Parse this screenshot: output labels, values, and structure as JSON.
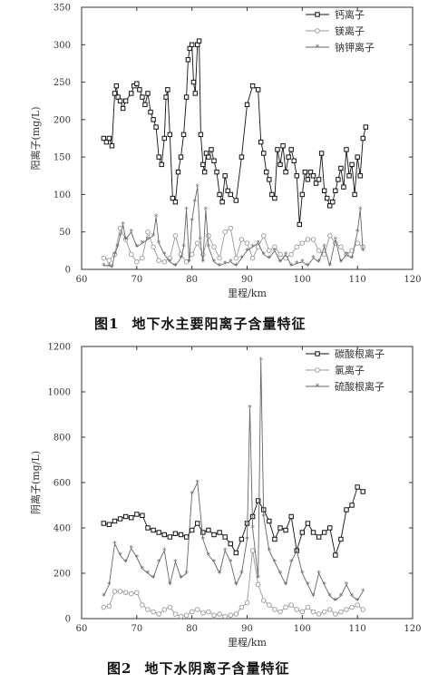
{
  "figures": [
    {
      "number": "图1",
      "caption": "地下水主要阳离子含量特征"
    },
    {
      "number": "图2",
      "caption": "地下水阴离子含量特征"
    }
  ],
  "chart_data": [
    {
      "type": "line",
      "xlabel": "里程/km",
      "ylabel": "阳离子(mg/L)",
      "xlim": [
        60,
        120
      ],
      "ylim": [
        0,
        350
      ],
      "xticks": [
        60,
        70,
        80,
        90,
        100,
        110,
        120
      ],
      "yticks": [
        0,
        50,
        100,
        150,
        200,
        250,
        300,
        350
      ],
      "legend_position": "top-right",
      "series": [
        {
          "name": "钙离子",
          "color": "#111111",
          "marker": "square",
          "x": [
            64,
            64.5,
            65,
            65.5,
            66,
            66.3,
            66.6,
            67,
            67.5,
            68,
            69,
            69.5,
            70,
            70.5,
            71,
            71.5,
            72,
            72.5,
            73,
            73.5,
            74,
            74.5,
            75,
            75.3,
            75.6,
            76,
            76.5,
            77,
            77.5,
            78,
            78.5,
            79,
            79.3,
            79.6,
            80,
            80.3,
            80.6,
            81,
            81.3,
            81.6,
            82,
            82.3,
            82.6,
            83,
            83.5,
            84,
            84.5,
            85,
            85.5,
            86,
            86.5,
            87,
            88,
            89,
            90,
            91,
            92,
            92.5,
            93,
            93.5,
            94,
            94.5,
            95,
            95.5,
            96,
            96.5,
            97,
            97.5,
            98,
            98.5,
            99,
            99.5,
            100,
            100.5,
            101,
            101.5,
            102,
            102.5,
            103,
            103.5,
            104,
            104.5,
            105,
            105.5,
            106,
            106.5,
            107,
            107.5,
            108,
            108.5,
            109,
            109.5,
            110,
            110.5,
            111,
            111.5
          ],
          "y": [
            175,
            170,
            175,
            165,
            235,
            245,
            230,
            225,
            215,
            225,
            235,
            245,
            248,
            240,
            230,
            220,
            235,
            210,
            200,
            190,
            150,
            140,
            175,
            230,
            240,
            180,
            95,
            90,
            130,
            150,
            180,
            230,
            280,
            295,
            300,
            250,
            235,
            300,
            305,
            180,
            140,
            130,
            155,
            150,
            160,
            145,
            130,
            100,
            90,
            125,
            105,
            100,
            92,
            150,
            220,
            245,
            240,
            170,
            155,
            130,
            120,
            100,
            95,
            160,
            140,
            165,
            130,
            150,
            160,
            145,
            125,
            60,
            100,
            130,
            120,
            130,
            125,
            115,
            120,
            155,
            105,
            95,
            85,
            90,
            105,
            120,
            135,
            110,
            160,
            125,
            140,
            100,
            150,
            125,
            175,
            190
          ]
        },
        {
          "name": "镁离子",
          "color": "#999999",
          "marker": "circle",
          "x": [
            64,
            65,
            66,
            67,
            68,
            69,
            70,
            71,
            72,
            73,
            74,
            75,
            76,
            77,
            78,
            79,
            80,
            81,
            82,
            83,
            84,
            85,
            86,
            87,
            88,
            89,
            90,
            91,
            92,
            93,
            94,
            95,
            96,
            97,
            98,
            99,
            100,
            101,
            102,
            103,
            104,
            105,
            106,
            107,
            108,
            109,
            110,
            111
          ],
          "y": [
            15,
            12,
            20,
            55,
            40,
            20,
            10,
            15,
            50,
            30,
            12,
            10,
            15,
            45,
            20,
            10,
            20,
            35,
            20,
            45,
            30,
            15,
            50,
            55,
            15,
            40,
            35,
            15,
            30,
            45,
            25,
            30,
            20,
            15,
            20,
            30,
            35,
            40,
            40,
            25,
            20,
            45,
            35,
            30,
            20,
            25,
            35,
            30
          ]
        },
        {
          "name": "钠钾离子",
          "color": "#666666",
          "marker": "star",
          "x": [
            64,
            65,
            65.5,
            66,
            66.5,
            67,
            67.5,
            68,
            69,
            70,
            71,
            72,
            73,
            73.5,
            74,
            75,
            76,
            77,
            78,
            78.5,
            79,
            79.5,
            80,
            80.5,
            81,
            81.5,
            82,
            82.5,
            83,
            84,
            85,
            86,
            87,
            88,
            89,
            90,
            91,
            92,
            93,
            94,
            95,
            96,
            97,
            98,
            99,
            100,
            101,
            102,
            103,
            104,
            105,
            106,
            107,
            108,
            109,
            110,
            110.5,
            111
          ],
          "y": [
            5,
            5,
            3,
            20,
            30,
            45,
            60,
            40,
            50,
            30,
            35,
            40,
            45,
            70,
            35,
            20,
            10,
            5,
            15,
            30,
            80,
            10,
            65,
            90,
            110,
            40,
            10,
            80,
            30,
            10,
            5,
            8,
            10,
            5,
            15,
            25,
            30,
            35,
            20,
            15,
            25,
            10,
            20,
            5,
            8,
            10,
            5,
            15,
            10,
            30,
            5,
            40,
            10,
            20,
            15,
            50,
            80,
            25
          ]
        }
      ]
    },
    {
      "type": "line",
      "xlabel": "里程/km",
      "ylabel": "阴离子(mg/L)",
      "xlim": [
        60,
        120
      ],
      "ylim": [
        0,
        1200
      ],
      "xticks": [
        60,
        70,
        80,
        90,
        100,
        110,
        120
      ],
      "yticks": [
        0,
        200,
        400,
        600,
        800,
        1000,
        1200
      ],
      "legend_position": "top-right",
      "series": [
        {
          "name": "碳酸根离子",
          "color": "#111111",
          "marker": "square",
          "x": [
            64,
            65,
            66,
            67,
            68,
            69,
            70,
            71,
            72,
            73,
            74,
            75,
            76,
            77,
            78,
            79,
            80,
            81,
            82,
            83,
            84,
            85,
            86,
            87,
            88,
            89,
            90,
            91,
            92,
            93,
            94,
            95,
            96,
            97,
            98,
            99,
            100,
            101,
            102,
            103,
            104,
            105,
            106,
            107,
            108,
            109,
            110,
            111
          ],
          "y": [
            420,
            415,
            430,
            440,
            450,
            445,
            460,
            455,
            400,
            390,
            380,
            370,
            360,
            375,
            370,
            360,
            390,
            420,
            380,
            390,
            370,
            380,
            360,
            330,
            290,
            350,
            420,
            450,
            520,
            480,
            430,
            350,
            400,
            390,
            450,
            300,
            380,
            420,
            380,
            360,
            380,
            400,
            280,
            350,
            480,
            500,
            580,
            560
          ]
        },
        {
          "name": "氯离子",
          "color": "#999999",
          "marker": "circle",
          "x": [
            64,
            65,
            66,
            67,
            68,
            69,
            70,
            71,
            72,
            73,
            74,
            75,
            76,
            77,
            78,
            79,
            80,
            81,
            82,
            83,
            84,
            85,
            86,
            87,
            88,
            89,
            90,
            91,
            92,
            93,
            94,
            95,
            96,
            97,
            98,
            99,
            100,
            101,
            102,
            103,
            104,
            105,
            106,
            107,
            108,
            109,
            110,
            111
          ],
          "y": [
            50,
            55,
            120,
            120,
            115,
            110,
            115,
            60,
            40,
            30,
            20,
            40,
            50,
            20,
            10,
            15,
            30,
            40,
            25,
            30,
            15,
            20,
            10,
            15,
            20,
            50,
            70,
            300,
            150,
            80,
            60,
            40,
            30,
            50,
            60,
            40,
            30,
            50,
            30,
            20,
            30,
            40,
            20,
            30,
            40,
            50,
            60,
            40
          ]
        },
        {
          "name": "硫酸根离子",
          "color": "#666666",
          "marker": "star",
          "x": [
            64,
            65,
            66,
            67,
            68,
            69,
            70,
            71,
            72,
            73,
            74,
            75,
            76,
            77,
            78,
            79,
            80,
            81,
            82,
            83,
            84,
            85,
            86,
            87,
            88,
            89,
            90,
            90.5,
            91,
            92,
            92.5,
            93,
            94,
            95,
            96,
            97,
            98,
            99,
            100,
            101,
            102,
            103,
            104,
            105,
            106,
            107,
            108,
            109,
            110,
            111
          ],
          "y": [
            100,
            150,
            330,
            280,
            250,
            310,
            270,
            220,
            200,
            180,
            250,
            300,
            150,
            250,
            180,
            200,
            550,
            600,
            350,
            280,
            250,
            200,
            300,
            250,
            150,
            200,
            350,
            930,
            400,
            180,
            1140,
            450,
            300,
            250,
            200,
            150,
            250,
            300,
            200,
            150,
            100,
            200,
            150,
            100,
            80,
            100,
            150,
            100,
            80,
            120
          ]
        }
      ]
    }
  ]
}
